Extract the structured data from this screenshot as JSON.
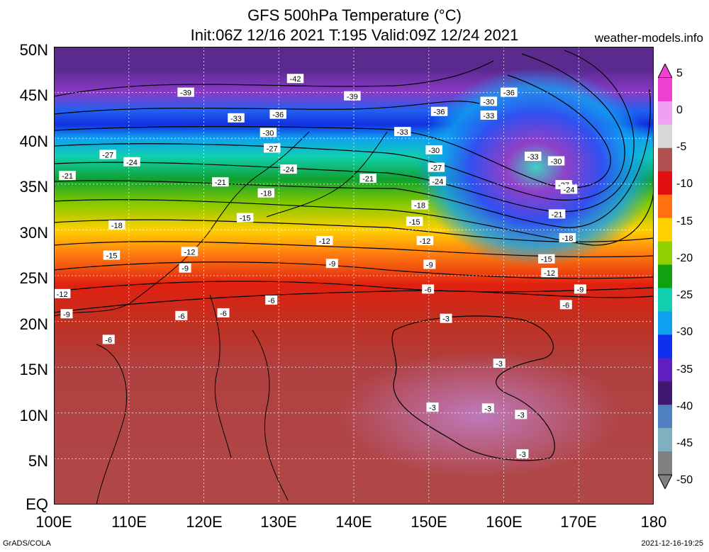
{
  "title": {
    "line1": "GFS 500hPa Temperature (°C)",
    "line2": "Init:06Z 12/16 2021 T:195 Valid:09Z 12/24 2021",
    "site": "weather-models.info"
  },
  "axes": {
    "lat_labels": [
      "50N",
      "45N",
      "40N",
      "35N",
      "30N",
      "25N",
      "20N",
      "15N",
      "10N",
      "5N",
      "EQ"
    ],
    "lon_labels": [
      "100E",
      "110E",
      "120E",
      "130E",
      "140E",
      "150E",
      "160E",
      "170E",
      "180"
    ]
  },
  "colorbar": {
    "labels": [
      "5",
      "0",
      "-5",
      "-10",
      "-15",
      "-20",
      "-25",
      "-30",
      "-35",
      "-40",
      "-45",
      "-50"
    ],
    "colors": [
      "#f040d0",
      "#f0a0f0",
      "#d8d8d8",
      "#b05050",
      "#e01010",
      "#ff7010",
      "#ffd000",
      "#90d000",
      "#10a010",
      "#10d0b0",
      "#10a0f0",
      "#1030f0",
      "#6020c0",
      "#401870",
      "#5080c0",
      "#80b0c0",
      "#808080"
    ]
  },
  "contour_labels": [
    {
      "t": "-42",
      "lon": 132.2,
      "lat": 46.5
    },
    {
      "t": "-39",
      "lon": 117.6,
      "lat": 45.0
    },
    {
      "t": "-39",
      "lon": 139.8,
      "lat": 44.6
    },
    {
      "t": "-36",
      "lon": 160.7,
      "lat": 45.0
    },
    {
      "t": "-36",
      "lon": 129.9,
      "lat": 42.6
    },
    {
      "t": "-36",
      "lon": 151.4,
      "lat": 42.9
    },
    {
      "t": "-33",
      "lon": 124.3,
      "lat": 42.2
    },
    {
      "t": "-30",
      "lon": 158.0,
      "lat": 44.0
    },
    {
      "t": "-33",
      "lon": 158.0,
      "lat": 42.5
    },
    {
      "t": "-30",
      "lon": 128.6,
      "lat": 40.6
    },
    {
      "t": "-33",
      "lon": 146.5,
      "lat": 40.7
    },
    {
      "t": "-27",
      "lon": 107.2,
      "lat": 38.2
    },
    {
      "t": "-27",
      "lon": 129.1,
      "lat": 38.9
    },
    {
      "t": "-30",
      "lon": 150.7,
      "lat": 38.7
    },
    {
      "t": "-33",
      "lon": 163.9,
      "lat": 38.0
    },
    {
      "t": "-30",
      "lon": 167.0,
      "lat": 37.5
    },
    {
      "t": "-24",
      "lon": 110.4,
      "lat": 37.4
    },
    {
      "t": "-24",
      "lon": 131.3,
      "lat": 36.6
    },
    {
      "t": "-27",
      "lon": 151.0,
      "lat": 36.8
    },
    {
      "t": "-21",
      "lon": 101.8,
      "lat": 35.9
    },
    {
      "t": "-21",
      "lon": 122.2,
      "lat": 35.2
    },
    {
      "t": "-21",
      "lon": 141.9,
      "lat": 35.6
    },
    {
      "t": "-24",
      "lon": 151.2,
      "lat": 35.3
    },
    {
      "t": "-27",
      "lon": 168.0,
      "lat": 34.9
    },
    {
      "t": "-24",
      "lon": 168.7,
      "lat": 34.4
    },
    {
      "t": "-18",
      "lon": 128.3,
      "lat": 34.0
    },
    {
      "t": "-15",
      "lon": 125.5,
      "lat": 31.3
    },
    {
      "t": "-18",
      "lon": 148.8,
      "lat": 32.7
    },
    {
      "t": "-21",
      "lon": 167.1,
      "lat": 31.7
    },
    {
      "t": "-15",
      "lon": 148.1,
      "lat": 30.9
    },
    {
      "t": "-18",
      "lon": 108.4,
      "lat": 30.5
    },
    {
      "t": "-12",
      "lon": 136.1,
      "lat": 28.8
    },
    {
      "t": "-12",
      "lon": 149.5,
      "lat": 28.8
    },
    {
      "t": "-18",
      "lon": 168.5,
      "lat": 29.1
    },
    {
      "t": "-12",
      "lon": 118.1,
      "lat": 27.6
    },
    {
      "t": "-15",
      "lon": 107.7,
      "lat": 27.2
    },
    {
      "t": "-15",
      "lon": 165.7,
      "lat": 26.8
    },
    {
      "t": "-9",
      "lon": 137.1,
      "lat": 26.3
    },
    {
      "t": "-9",
      "lon": 150.1,
      "lat": 26.2
    },
    {
      "t": "-9",
      "lon": 117.5,
      "lat": 25.8
    },
    {
      "t": "-12",
      "lon": 166.1,
      "lat": 25.3
    },
    {
      "t": "-12",
      "lon": 101.1,
      "lat": 23.0
    },
    {
      "t": "-9",
      "lon": 170.2,
      "lat": 23.5
    },
    {
      "t": "-6",
      "lon": 149.9,
      "lat": 23.5
    },
    {
      "t": "-6",
      "lon": 129.0,
      "lat": 22.3
    },
    {
      "t": "-6",
      "lon": 168.3,
      "lat": 21.8
    },
    {
      "t": "-6",
      "lon": 122.6,
      "lat": 20.9
    },
    {
      "t": "-9",
      "lon": 101.7,
      "lat": 20.8
    },
    {
      "t": "-6",
      "lon": 117.0,
      "lat": 20.6
    },
    {
      "t": "-3",
      "lon": 152.3,
      "lat": 20.3
    },
    {
      "t": "-6",
      "lon": 107.3,
      "lat": 18.0
    },
    {
      "t": "-3",
      "lon": 159.4,
      "lat": 15.4
    },
    {
      "t": "-3",
      "lon": 150.5,
      "lat": 10.6
    },
    {
      "t": "-3",
      "lon": 157.9,
      "lat": 10.5
    },
    {
      "t": "-3",
      "lon": 162.3,
      "lat": 9.8
    },
    {
      "t": "-3",
      "lon": 162.5,
      "lat": 5.5
    }
  ],
  "footer": {
    "left": "GrADS/COLA",
    "right": "2021-12-16-19:25"
  }
}
